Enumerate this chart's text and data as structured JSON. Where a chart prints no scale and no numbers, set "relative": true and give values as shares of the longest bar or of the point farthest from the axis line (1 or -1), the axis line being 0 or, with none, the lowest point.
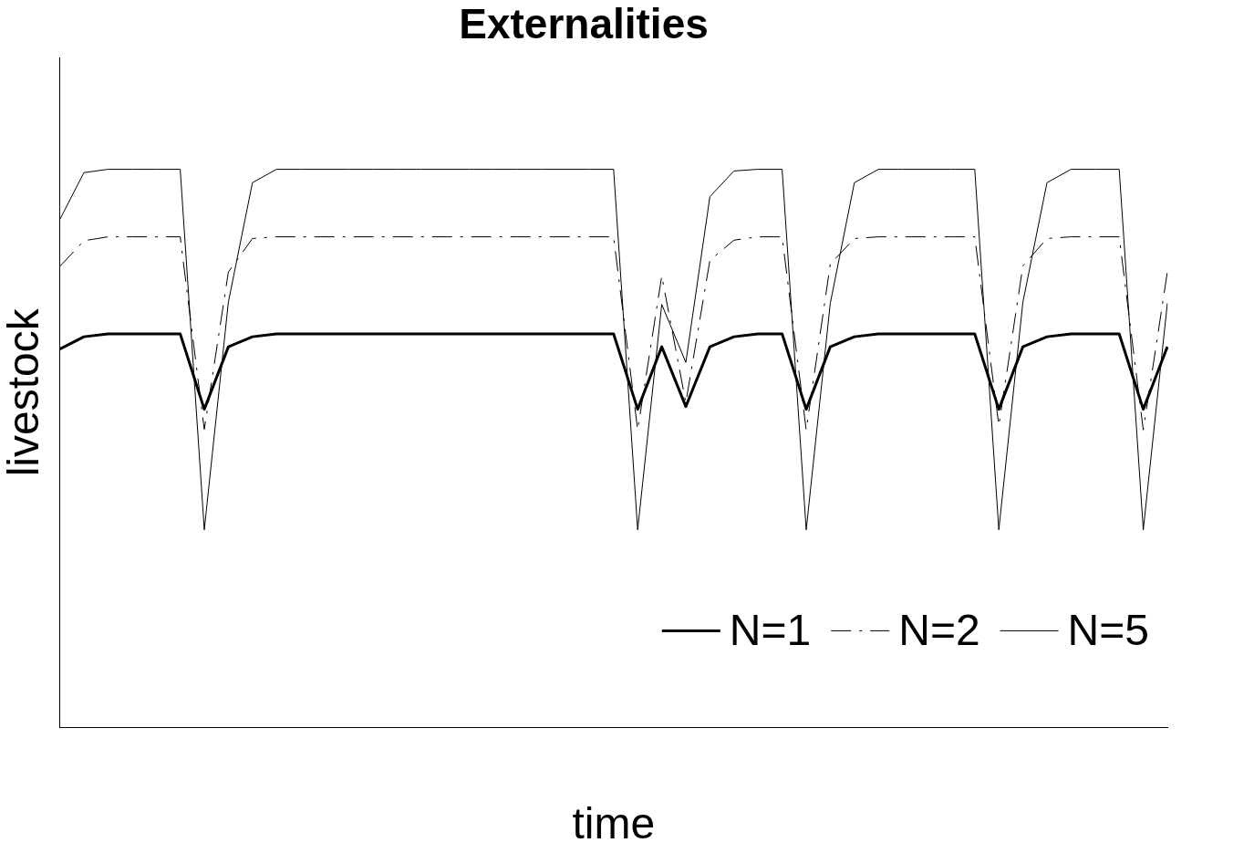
{
  "chart_data": {
    "type": "line",
    "title": "Externalities",
    "xlabel": "time",
    "ylabel": "livestock",
    "relative": true,
    "grid": false,
    "legend": "bottom right",
    "marker": "none",
    "tick_labels": false,
    "categories": [
      null,
      null,
      null,
      null,
      null,
      null,
      null,
      null,
      null,
      null,
      null,
      null,
      null,
      null,
      null,
      null,
      null,
      null,
      null,
      null,
      null,
      null,
      null,
      null,
      null,
      null,
      null,
      null,
      null,
      null,
      null,
      null,
      null,
      null,
      null,
      null,
      null,
      null,
      null,
      null,
      null,
      null,
      null,
      null,
      null,
      null,
      null
    ],
    "series": [
      {
        "name": "N=1",
        "color": "#000000",
        "line_style": "solid",
        "values": [
          0.678,
          0.7,
          0.705,
          0.705,
          0.705,
          0.705,
          0.57,
          0.682,
          0.7,
          0.705,
          0.705,
          0.705,
          0.705,
          0.705,
          0.705,
          0.705,
          0.705,
          0.705,
          0.705,
          0.705,
          0.705,
          0.705,
          0.705,
          0.705,
          0.57,
          0.682,
          0.575,
          0.682,
          0.7,
          0.705,
          0.705,
          0.57,
          0.682,
          0.7,
          0.705,
          0.705,
          0.705,
          0.705,
          0.705,
          0.57,
          0.682,
          0.7,
          0.705,
          0.705,
          0.705,
          0.57,
          0.682
        ]
      },
      {
        "name": "N=2",
        "color": "#000000",
        "line_style": "dashed",
        "values": [
          0.826,
          0.872,
          0.879,
          0.879,
          0.879,
          0.879,
          0.534,
          0.816,
          0.876,
          0.879,
          0.879,
          0.879,
          0.879,
          0.879,
          0.879,
          0.879,
          0.879,
          0.879,
          0.879,
          0.879,
          0.879,
          0.879,
          0.879,
          0.879,
          0.533,
          0.809,
          0.582,
          0.837,
          0.873,
          0.879,
          0.879,
          0.533,
          0.83,
          0.876,
          0.879,
          0.879,
          0.879,
          0.879,
          0.879,
          0.541,
          0.827,
          0.876,
          0.879,
          0.879,
          0.879,
          0.533,
          0.816
        ]
      },
      {
        "name": "N=5",
        "color": "#000000",
        "line_style": "solid",
        "values": [
          0.91,
          0.994,
          1,
          1,
          1,
          1,
          0.354,
          0.762,
          0.976,
          1,
          1,
          1,
          1,
          1,
          1,
          1,
          1,
          1,
          1,
          1,
          1,
          1,
          1,
          1,
          0.354,
          0.758,
          0.654,
          0.951,
          0.997,
          1,
          1,
          0.354,
          0.76,
          0.976,
          1,
          1,
          1,
          1,
          1,
          0.354,
          0.762,
          0.976,
          1,
          1,
          1,
          0.354,
          0.76
        ]
      }
    ]
  }
}
